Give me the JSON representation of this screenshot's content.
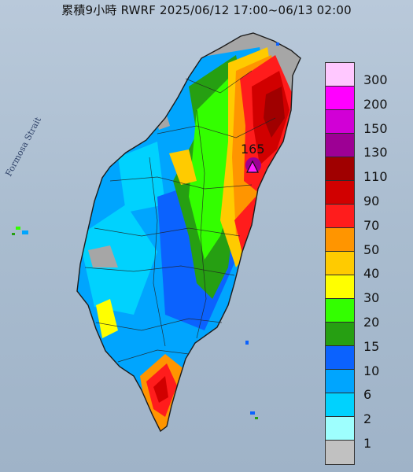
{
  "title": "累積9小時 RWRF 2025/06/12 17:00~06/13 02:00",
  "strait_label": "Formosa Strait",
  "peak": {
    "value_label": "165",
    "marker_color": "#ff22ff"
  },
  "colors": {
    "sea": "#aebfd1",
    "land_gray": "#a6a6a6",
    "coast": "#1c1c1c"
  },
  "legend": {
    "items": [
      {
        "label": "300",
        "color": "#ffc8ff"
      },
      {
        "label": "200",
        "color": "#ff00ff"
      },
      {
        "label": "150",
        "color": "#d100d6"
      },
      {
        "label": "130",
        "color": "#9d0094"
      },
      {
        "label": "110",
        "color": "#a00000"
      },
      {
        "label": "90",
        "color": "#d10000"
      },
      {
        "label": "70",
        "color": "#ff1c1c"
      },
      {
        "label": "50",
        "color": "#ff9500"
      },
      {
        "label": "40",
        "color": "#ffcb00"
      },
      {
        "label": "30",
        "color": "#ffff00"
      },
      {
        "label": "20",
        "color": "#33ff00"
      },
      {
        "label": "15",
        "color": "#269f12"
      },
      {
        "label": "10",
        "color": "#0b62fe"
      },
      {
        "label": "6",
        "color": "#00a5fe"
      },
      {
        "label": "2",
        "color": "#00d2fe"
      },
      {
        "label": "1",
        "color": "#9efffe"
      },
      {
        "label": "",
        "color": "#c1c1c1"
      }
    ]
  }
}
